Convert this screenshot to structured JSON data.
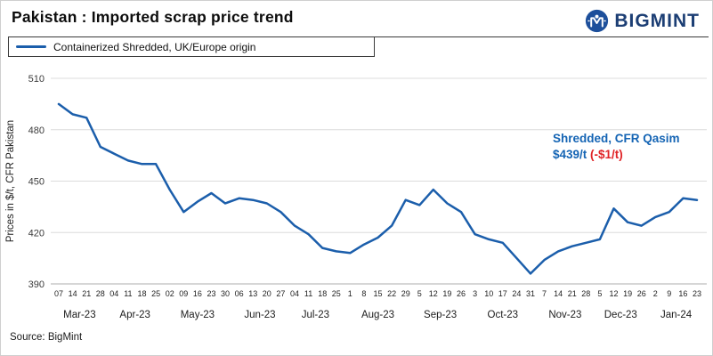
{
  "header": {
    "title": "Pakistan : Imported scrap price trend",
    "brand": "BIGMINT"
  },
  "source_note": "Source: BigMint",
  "colors": {
    "line": "#1b5eab",
    "annotation_blue": "#1464b4",
    "annotation_red": "#e02427",
    "brand_navy": "#1c3e74",
    "grid": "#dcdcdc",
    "axis": "#aeaeae"
  },
  "chart_data": {
    "type": "line",
    "title": "Pakistan : Imported scrap price trend",
    "ylabel": "Prices in $/t, CFR Pakistan",
    "ylim": [
      390,
      510
    ],
    "yticks": [
      390,
      420,
      450,
      480,
      510
    ],
    "grid": "horizontal",
    "legend_position": "top-left",
    "series": [
      {
        "name": "Containerized Shredded, UK/Europe origin",
        "color": "#1b5eab",
        "values": [
          495,
          489,
          487,
          470,
          466,
          462,
          460,
          460,
          445,
          432,
          438,
          443,
          437,
          440,
          439,
          437,
          432,
          424,
          419,
          411,
          409,
          408,
          413,
          417,
          424,
          439,
          436,
          445,
          437,
          432,
          419,
          416,
          414,
          405,
          396,
          404,
          409,
          412,
          414,
          416,
          434,
          426,
          424,
          429,
          432,
          440,
          439
        ]
      }
    ],
    "x_day_labels": [
      "07",
      "14",
      "21",
      "28",
      "04",
      "11",
      "18",
      "25",
      "02",
      "09",
      "16",
      "23",
      "30",
      "06",
      "13",
      "20",
      "27",
      "04",
      "11",
      "18",
      "25",
      "1",
      "8",
      "15",
      "22",
      "29",
      "5",
      "12",
      "19",
      "26",
      "3",
      "10",
      "17",
      "24",
      "31",
      "7",
      "14",
      "21",
      "28",
      "5",
      "12",
      "19",
      "26",
      "2",
      "9",
      "16",
      "23"
    ],
    "month_groups": [
      {
        "label": "Mar-23",
        "count": 4
      },
      {
        "label": "Apr-23",
        "count": 4
      },
      {
        "label": "May-23",
        "count": 5
      },
      {
        "label": "Jun-23",
        "count": 4
      },
      {
        "label": "Jul-23",
        "count": 4
      },
      {
        "label": "Aug-23",
        "count": 5
      },
      {
        "label": "Sep-23",
        "count": 4
      },
      {
        "label": "Oct-23",
        "count": 5
      },
      {
        "label": "Nov-23",
        "count": 4
      },
      {
        "label": "Dec-23",
        "count": 4
      },
      {
        "label": "Jan-24",
        "count": 4
      }
    ],
    "last_point_annotation": {
      "label": "Shredded, CFR Qasim",
      "value": "$439/t",
      "change": "(-$1/t)"
    }
  }
}
